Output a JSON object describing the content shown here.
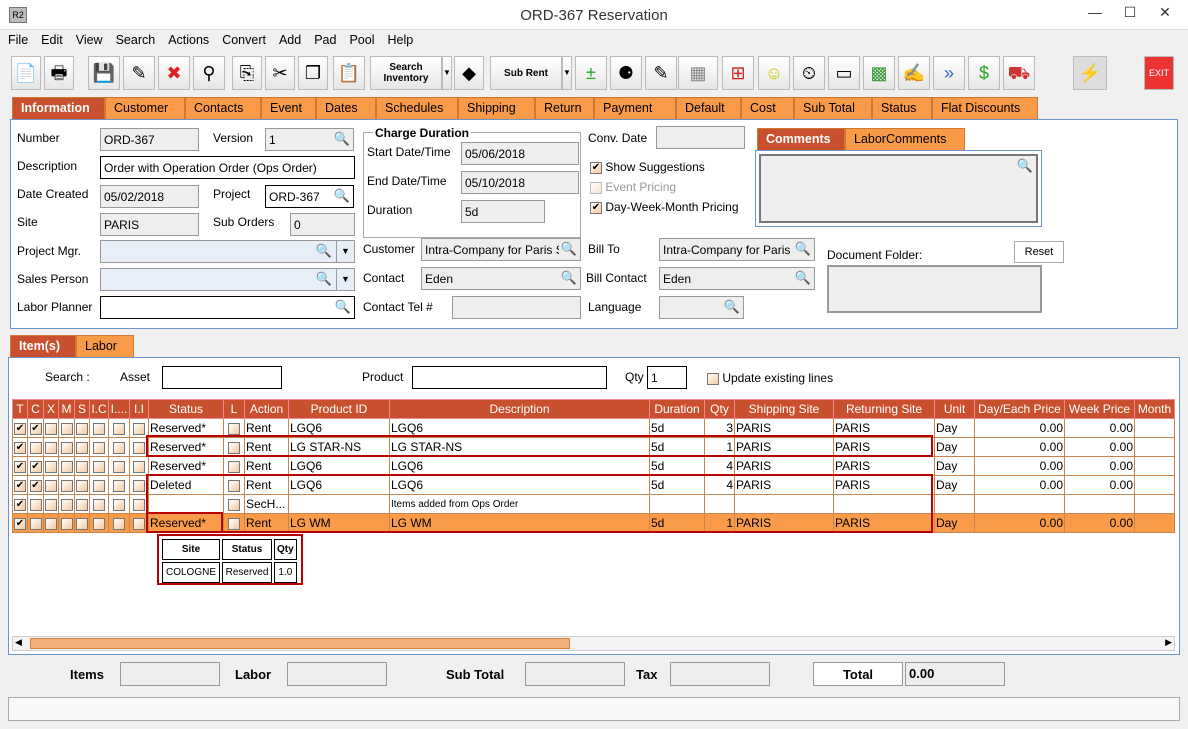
{
  "window": {
    "title": "ORD-367 Reservation",
    "logo": "R2"
  },
  "menu": [
    "File",
    "Edit",
    "View",
    "Search",
    "Actions",
    "Convert",
    "Add",
    "Pad",
    "Pool",
    "Help"
  ],
  "toolbar": {
    "search_inventory": "Search Inventory",
    "sub_rent": "Sub Rent",
    "exit": "EXIT"
  },
  "main_tabs": [
    "Information",
    "Customer",
    "Contacts",
    "Event",
    "Dates",
    "Schedules",
    "Shipping",
    "Return",
    "Payment",
    "Default",
    "Cost",
    "Sub Total",
    "Status",
    "Flat Discounts"
  ],
  "info": {
    "number_label": "Number",
    "number": "ORD-367",
    "version_label": "Version",
    "version": "1",
    "description_label": "Description",
    "description": "Order with Operation Order (Ops Order)",
    "date_created_label": "Date Created",
    "date_created": "05/02/2018",
    "project_label": "Project",
    "project": "ORD-367",
    "site_label": "Site",
    "site": "PARIS",
    "sub_orders_label": "Sub Orders",
    "sub_orders": "0",
    "project_mgr_label": "Project Mgr.",
    "sales_person_label": "Sales Person",
    "labor_planner_label": "Labor Planner",
    "charge_duration_title": "Charge Duration",
    "start_label": "Start Date/Time",
    "start": "05/06/2018",
    "end_label": "End Date/Time",
    "end": "05/10/2018",
    "duration_label": "Duration",
    "duration": "5d",
    "conv_date_label": "Conv. Date",
    "show_suggestions": "Show Suggestions",
    "event_pricing": "Event Pricing",
    "dwm_pricing": "Day-Week-Month Pricing",
    "customer_label": "Customer",
    "customer": "Intra-Company for Paris Site",
    "contact_label": "Contact",
    "contact": "Eden",
    "contact_tel_label": "Contact Tel #",
    "bill_to_label": "Bill To",
    "bill_to": "Intra-Company for Paris Site",
    "bill_contact_label": "Bill Contact",
    "bill_contact": "Eden",
    "language_label": "Language",
    "comments_tabs": [
      "Comments",
      "LaborComments"
    ],
    "document_folder_label": "Document Folder:",
    "reset": "Reset"
  },
  "item_tabs": [
    "Item(s)",
    "Labor"
  ],
  "search": {
    "label": "Search :",
    "asset_label": "Asset",
    "product_label": "Product",
    "qty_label": "Qty",
    "qty": "1",
    "update_label": "Update existing lines"
  },
  "grid": {
    "columns": [
      "T",
      "C",
      "X",
      "M",
      "S",
      "I.C",
      "I....",
      "I.I",
      "Status",
      "L",
      "Action",
      "Product ID",
      "Description",
      "Duration",
      "Qty",
      "Shipping Site",
      "Returning Site",
      "Unit",
      "Day/Each Price",
      "Week Price",
      "Month"
    ],
    "rows": [
      {
        "t": true,
        "c": true,
        "status": "Reserved*",
        "action": "Rent",
        "product": "LGQ6",
        "description": "LGQ6",
        "duration": "5d",
        "qty": "3",
        "ship": "PARIS",
        "ret": "PARIS",
        "unit": "Day",
        "day": "0.00",
        "week": "0.00"
      },
      {
        "t": true,
        "c": false,
        "status": "Reserved*",
        "action": "Rent",
        "product": "LG STAR-NS",
        "description": "LG STAR-NS",
        "duration": "5d",
        "qty": "1",
        "ship": "PARIS",
        "ret": "PARIS",
        "unit": "Day",
        "day": "0.00",
        "week": "0.00"
      },
      {
        "t": true,
        "c": true,
        "status": "Reserved*",
        "action": "Rent",
        "product": "LGQ6",
        "description": "LGQ6",
        "duration": "5d",
        "qty": "4",
        "ship": "PARIS",
        "ret": "PARIS",
        "unit": "Day",
        "day": "0.00",
        "week": "0.00"
      },
      {
        "t": true,
        "c": true,
        "status": "Deleted",
        "action": "Rent",
        "product": "LGQ6",
        "description": "LGQ6",
        "duration": "5d",
        "qty": "4",
        "ship": "PARIS",
        "ret": "PARIS",
        "unit": "Day",
        "day": "0.00",
        "week": "0.00"
      },
      {
        "t": true,
        "c": false,
        "status": "",
        "action": "SecH...",
        "product": "",
        "description": "Items added from Ops Order",
        "duration": "",
        "qty": "",
        "ship": "",
        "ret": "",
        "unit": "",
        "day": "",
        "week": ""
      },
      {
        "t": true,
        "c": false,
        "status": "Reserved*",
        "action": "Rent",
        "product": "LG WM",
        "description": "LG WM",
        "duration": "5d",
        "qty": "1",
        "ship": "PARIS",
        "ret": "PARIS",
        "unit": "Day",
        "day": "0.00",
        "week": "0.00",
        "selected": true
      }
    ]
  },
  "popup": {
    "headers": [
      "Site",
      "Status",
      "Qty"
    ],
    "row": [
      "COLOGNE",
      "Reserved",
      "1.0"
    ]
  },
  "footer": {
    "items": "Items",
    "labor": "Labor",
    "sub_total": "Sub Total",
    "tax": "Tax",
    "total": "Total",
    "total_value": "0.00"
  },
  "colors": {
    "accent": "#c8502e",
    "tab": "#f99a48",
    "highlight": "#b00000"
  }
}
